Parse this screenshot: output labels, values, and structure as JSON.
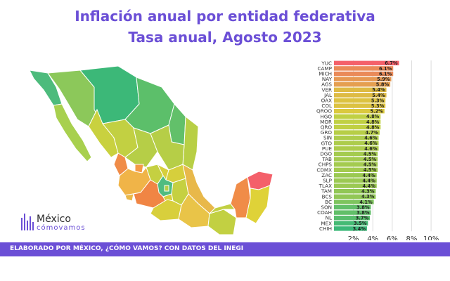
{
  "header": {
    "title": "Inflación anual por entidad federativa",
    "subtitle": "Tasa anual, Agosto 2023"
  },
  "footer": {
    "text": "ELABORADO POR MÉXICO, ¿CÓMO VAMOS? CON DATOS DEL INEGI"
  },
  "logo": {
    "name": "México",
    "tagline": "cómovamos"
  },
  "colors": {
    "accent": "#6b4fd6",
    "scale_low": "#3cb878",
    "scale_mid": "#d8d43a",
    "scale_high": "#f4606a"
  },
  "chart_data": {
    "type": "bar",
    "orientation": "horizontal",
    "title": "Inflación anual por entidad federativa",
    "subtitle": "Tasa anual, Agosto 2023",
    "categories": [
      "YUC",
      "CAMP",
      "MICH",
      "NAY",
      "AGS",
      "VER",
      "JAL",
      "OAX",
      "COL",
      "QROO",
      "HGO",
      "MOR",
      "QRO",
      "GRO",
      "SIN",
      "GTO",
      "PUE",
      "DGO",
      "TAB",
      "CHPS",
      "CDMX",
      "ZAC",
      "SLP",
      "TLAX",
      "TAM",
      "BCS",
      "BC",
      "SON",
      "COAH",
      "NL",
      "MEX",
      "CHIH"
    ],
    "values": [
      6.7,
      6.1,
      6.1,
      5.9,
      5.8,
      5.4,
      5.4,
      5.3,
      5.3,
      5.2,
      4.8,
      4.8,
      4.8,
      4.7,
      4.6,
      4.6,
      4.6,
      4.5,
      4.5,
      4.5,
      4.5,
      4.4,
      4.4,
      4.4,
      4.3,
      4.3,
      4.1,
      3.8,
      3.8,
      3.7,
      3.5,
      3.4
    ],
    "value_labels": [
      "6.7%",
      "6.1%",
      "6.1%",
      "5.9%",
      "5.8%",
      "5.4%",
      "5.4%",
      "5.3%",
      "5.3%",
      "5.2%",
      "4.8%",
      "4.8%",
      "4.8%",
      "4.7%",
      "4.6%",
      "4.6%",
      "4.6%",
      "4.5%",
      "4.5%",
      "4.5%",
      "4.5%",
      "4.4%",
      "4.4%",
      "4.4%",
      "4.3%",
      "4.3%",
      "4.1%",
      "3.8%",
      "3.8%",
      "3.7%",
      "3.5%",
      "3.4%"
    ],
    "xlim": [
      0,
      10.5
    ],
    "xticks": [
      "2%",
      "4%",
      "6%",
      "8%",
      "10%"
    ],
    "xtick_values": [
      2,
      4,
      6,
      8,
      10
    ],
    "grid": true,
    "legend": "none"
  },
  "map": {
    "type": "choropleth",
    "region": "México"
  }
}
